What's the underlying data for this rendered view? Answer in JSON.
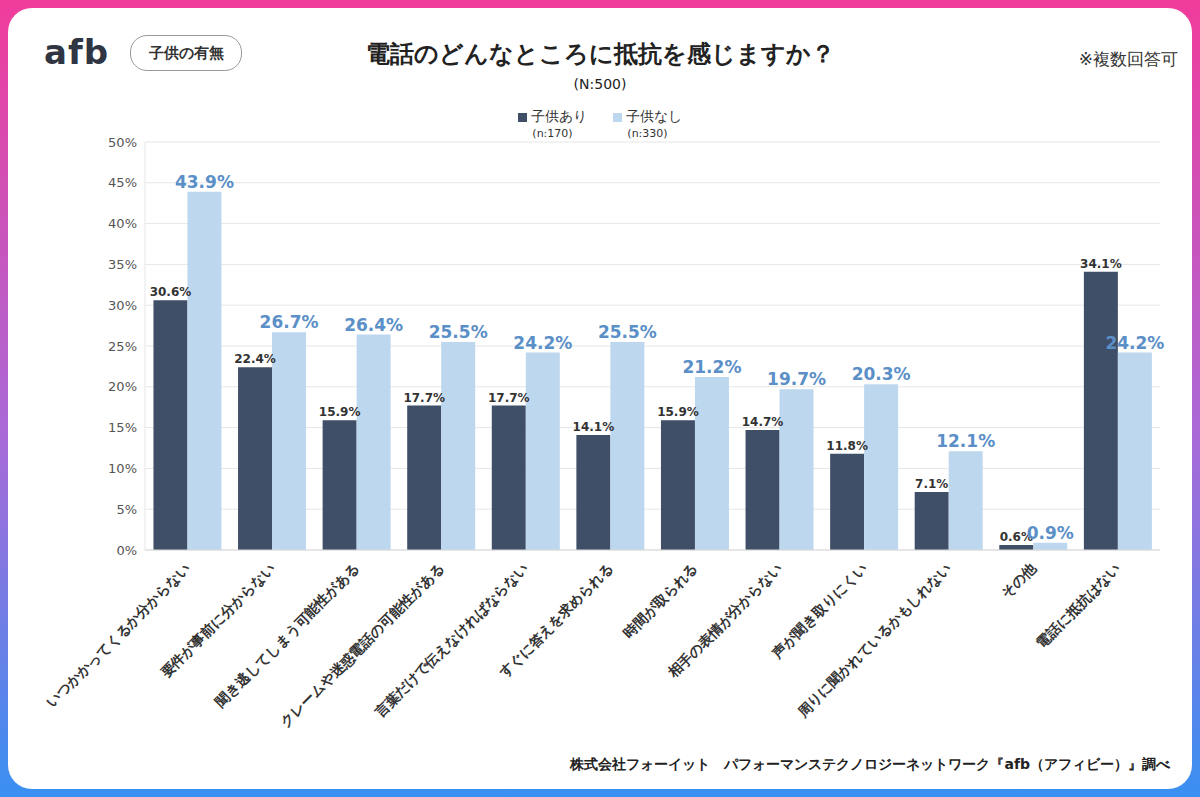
{
  "chart_data": {
    "type": "bar",
    "logo": "afb",
    "tag": "子供の有無",
    "title": "電話のどんなところに抵抗を感じますか？",
    "subtitle": "(N:500)",
    "note": "※複数回答可",
    "source": "株式会社フォーイット　パフォーマンステクノロジーネットワーク『afb（アフィビー）』調べ",
    "categories": [
      "いつかかってくるか分からない",
      "要件が事前に分からない",
      "聞き逃してしまう可能性がある",
      "クレームや迷惑電話の可能性がある",
      "言葉だけで伝えなければならない",
      "すぐに答えを求められる",
      "時間が取られる",
      "相手の表情が分からない",
      "声が聞き取りにくい",
      "周りに聞かれているかもしれない",
      "その他",
      "電話に抵抗はない"
    ],
    "series": [
      {
        "name": "子供あり",
        "sample": "(n:170)",
        "color": "#3f4f67",
        "values": [
          30.6,
          22.4,
          15.9,
          17.7,
          17.7,
          14.1,
          15.9,
          14.7,
          11.8,
          7.1,
          0.6,
          34.1
        ],
        "value_labels": [
          "30.6%",
          "22.4%",
          "15.9%",
          "17.7%",
          "17.7%",
          "14.1%",
          "15.9%",
          "14.7%",
          "11.8%",
          "7.1%",
          "0.6%",
          "34.1%"
        ]
      },
      {
        "name": "子供なし",
        "sample": "(n:330)",
        "color": "#bdd7ee",
        "values": [
          43.9,
          26.7,
          26.4,
          25.5,
          24.2,
          25.5,
          21.2,
          19.7,
          20.3,
          12.1,
          0.9,
          24.2
        ],
        "value_labels": [
          "43.9%",
          "26.7%",
          "26.4%",
          "25.5%",
          "24.2%",
          "25.5%",
          "21.2%",
          "19.7%",
          "20.3%",
          "12.1%",
          "0.9%",
          "24.2%"
        ]
      }
    ],
    "ylim": [
      0,
      50
    ],
    "yticks": [
      {
        "value": 0,
        "label": "0%"
      },
      {
        "value": 5,
        "label": "5%"
      },
      {
        "value": 10,
        "label": "10%"
      },
      {
        "value": 15,
        "label": "15%"
      },
      {
        "value": 20,
        "label": "20%"
      },
      {
        "value": 25,
        "label": "25%"
      },
      {
        "value": 30,
        "label": "30%"
      },
      {
        "value": 35,
        "label": "35%"
      },
      {
        "value": 40,
        "label": "40%"
      },
      {
        "value": 45,
        "label": "45%"
      },
      {
        "value": 50,
        "label": "50%"
      }
    ],
    "grid": true,
    "legend": "top",
    "data_labels": true
  }
}
